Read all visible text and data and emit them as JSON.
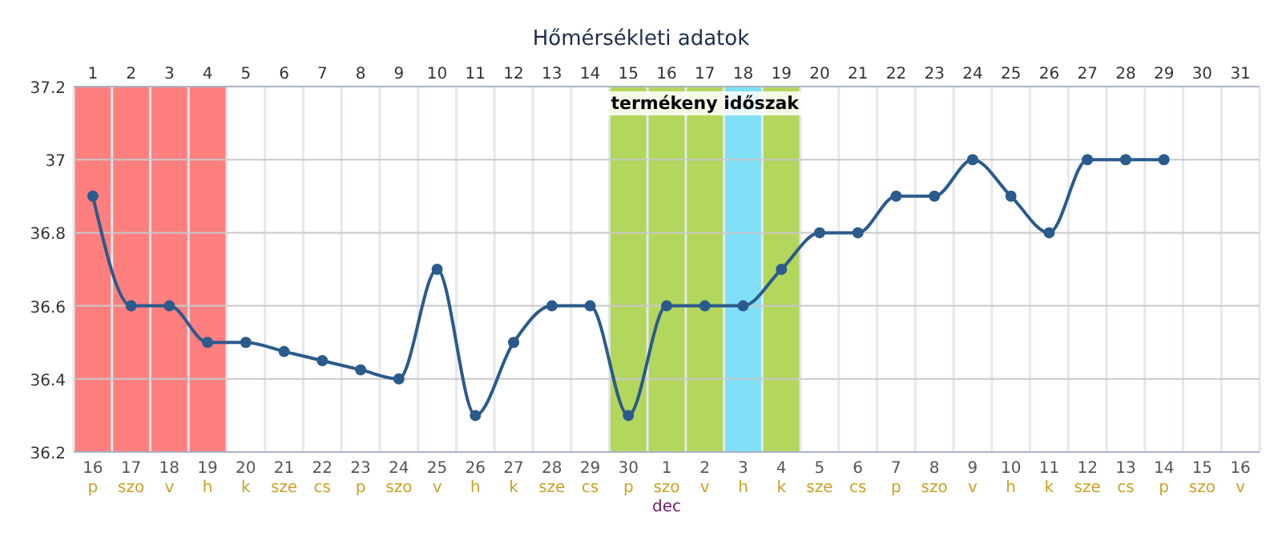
{
  "chart_data": {
    "type": "line",
    "title": "Hőmérsékleti adatok",
    "categories": [
      "16\np",
      "17\nszo",
      "18\nv",
      "19\nh",
      "20\nk",
      "21\nsze",
      "22\ncs",
      "23\np",
      "24\nszo",
      "25\nv",
      "26\nh",
      "27\nk",
      "28\nsze",
      "29\ncs",
      "30\np",
      "1\nszo\ndec",
      "2\nv",
      "3\nh",
      "4\nk",
      "5\nsze",
      "6\ncs",
      "7\np",
      "8\nszo",
      "9\nv",
      "10\nh",
      "11\nk",
      "12\nsze",
      "13\ncs",
      "14\np",
      "15\nszo",
      "16\nv"
    ],
    "series": [
      {
        "color": "#2b5a8c",
        "values": [
          36.9,
          36.6,
          36.6,
          36.5,
          36.5,
          36.475,
          36.45,
          36.425,
          36.4,
          36.7,
          36.3,
          36.5,
          36.6,
          36.6,
          36.3,
          36.6,
          36.6,
          36.6,
          36.7,
          36.8,
          36.8,
          36.9,
          36.9,
          37.0,
          36.9,
          36.8,
          37.0,
          37.0,
          37.0,
          null,
          null
        ]
      }
    ],
    "x2lim": [
      0.5,
      31.5
    ],
    "x2ticks": [
      1,
      2,
      3,
      4,
      5,
      6,
      7,
      8,
      9,
      10,
      11,
      12,
      13,
      14,
      15,
      16,
      17,
      18,
      19,
      20,
      21,
      22,
      23,
      24,
      25,
      26,
      27,
      28,
      29,
      30,
      31
    ],
    "ylim": [
      36.2,
      37.2
    ],
    "yticks": [
      36.2,
      36.4,
      36.6,
      36.8,
      {
        "value": 37,
        "label": "37"
      },
      37.2
    ],
    "bands": [
      {
        "axis": "x2",
        "from": 0.5,
        "to": 4.5,
        "color": "#ff7f7f"
      },
      {
        "axis": "x2",
        "from": 14.5,
        "to": 19.5,
        "color": "#b3d65c",
        "label": "termékeny időszak"
      },
      {
        "axis": "x2",
        "from": 17.5,
        "to": 18.5,
        "color": "#7fdff7"
      }
    ],
    "grid": true,
    "marker": "circle",
    "line_style": "solid"
  }
}
